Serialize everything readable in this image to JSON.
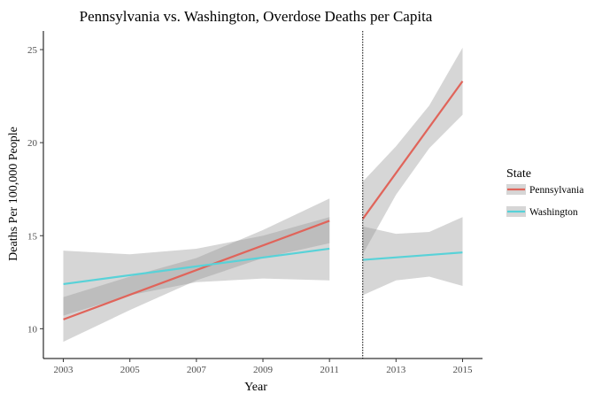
{
  "chart_data": {
    "type": "line",
    "title": "Pennsylvania vs. Washington, Overdose Deaths per Capita",
    "xlabel": "Year",
    "ylabel": "Deaths Per 100,000 People",
    "xlim": [
      2002.4,
      2015.6
    ],
    "ylim": [
      8.4,
      26.0
    ],
    "x_ticks": [
      2003,
      2005,
      2007,
      2009,
      2011,
      2013,
      2015
    ],
    "y_ticks": [
      10,
      15,
      20,
      25
    ],
    "cutoff_x": 2012,
    "grid": false,
    "legend": {
      "title": "State",
      "placement": "right"
    },
    "series": [
      {
        "name": "Pennsylvania",
        "color": "#e0645a",
        "segments": [
          {
            "x": [
              2003,
              2011
            ],
            "y": [
              10.5,
              15.8
            ],
            "band_x": [
              2003,
              2005,
              2007,
              2009,
              2011
            ],
            "band_lower": [
              9.3,
              11.0,
              12.6,
              13.8,
              14.6
            ],
            "band_upper": [
              11.7,
              12.8,
              13.8,
              15.3,
              17.0
            ]
          },
          {
            "x": [
              2012,
              2015
            ],
            "y": [
              15.9,
              23.3
            ],
            "band_x": [
              2012,
              2013,
              2014,
              2015
            ],
            "band_lower": [
              14.0,
              17.2,
              19.7,
              21.5
            ],
            "band_upper": [
              17.9,
              19.8,
              22.0,
              25.1
            ]
          }
        ]
      },
      {
        "name": "Washington",
        "color": "#58d2d8",
        "segments": [
          {
            "x": [
              2003,
              2011
            ],
            "y": [
              12.4,
              14.3
            ],
            "band_x": [
              2003,
              2005,
              2007,
              2009,
              2011
            ],
            "band_lower": [
              10.7,
              11.8,
              12.5,
              12.7,
              12.6
            ],
            "band_upper": [
              14.2,
              14.0,
              14.3,
              15.0,
              16.0
            ]
          },
          {
            "x": [
              2012,
              2015
            ],
            "y": [
              13.7,
              14.1
            ],
            "band_x": [
              2012,
              2013,
              2014,
              2015
            ],
            "band_lower": [
              11.8,
              12.6,
              12.8,
              12.3
            ],
            "band_upper": [
              15.5,
              15.1,
              15.2,
              16.0
            ]
          }
        ]
      }
    ]
  }
}
